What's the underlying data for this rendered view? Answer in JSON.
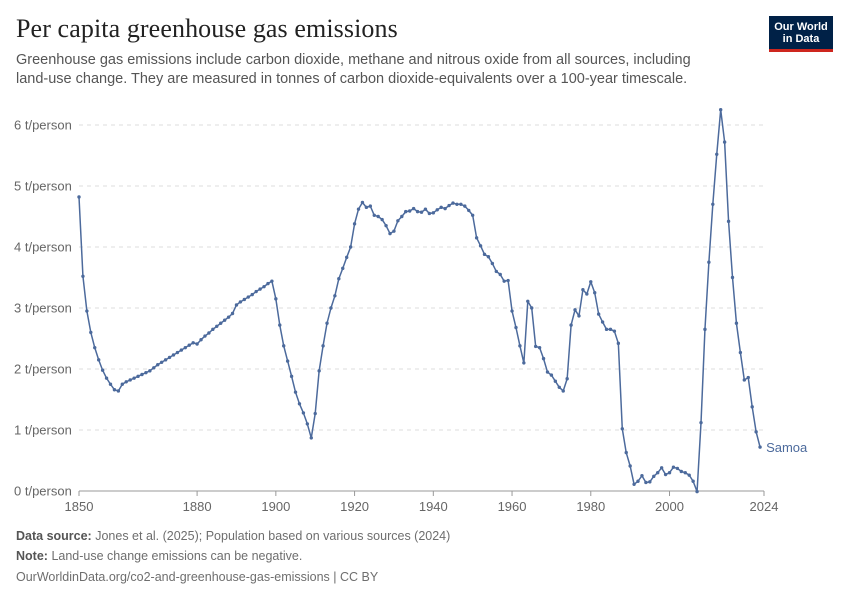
{
  "header": {
    "title": "Per capita greenhouse gas emissions",
    "subtitle": "Greenhouse gas emissions include carbon dioxide, methane and nitrous oxide from all sources, including land-use change. They are measured in tonnes of carbon dioxide-equivalents over a 100-year timescale."
  },
  "logo": {
    "line1": "Our World",
    "line2": "in Data",
    "bg_color": "#002147",
    "accent_color": "#ce261e"
  },
  "footer": {
    "source_label": "Data source:",
    "source_text": "Jones et al. (2025); Population based on various sources (2024)",
    "note_label": "Note:",
    "note_text": "Land-use change emissions can be negative.",
    "url_text": "OurWorldinData.org/co2-and-greenhouse-gas-emissions | CC BY"
  },
  "chart_data": {
    "type": "line",
    "title": "Per capita greenhouse gas emissions",
    "xlabel": "",
    "ylabel": "",
    "xlim": [
      1850,
      2024
    ],
    "ylim": [
      0,
      6
    ],
    "grid": true,
    "line_color": "#4c6a9c",
    "x_ticks": [
      {
        "value": 1850,
        "label": "1850"
      },
      {
        "value": 1880,
        "label": "1880"
      },
      {
        "value": 1900,
        "label": "1900"
      },
      {
        "value": 1920,
        "label": "1920"
      },
      {
        "value": 1940,
        "label": "1940"
      },
      {
        "value": 1960,
        "label": "1960"
      },
      {
        "value": 1980,
        "label": "1980"
      },
      {
        "value": 2000,
        "label": "2000"
      },
      {
        "value": 2024,
        "label": "2024"
      }
    ],
    "y_ticks": [
      {
        "value": 0,
        "label": "0 t/person"
      },
      {
        "value": 1,
        "label": "1 t/person"
      },
      {
        "value": 2,
        "label": "2 t/person"
      },
      {
        "value": 3,
        "label": "3 t/person"
      },
      {
        "value": 4,
        "label": "4 t/person"
      },
      {
        "value": 5,
        "label": "5 t/person"
      },
      {
        "value": 6,
        "label": "6 t/person"
      }
    ],
    "series": [
      {
        "name": "Samoa",
        "points": [
          [
            1850,
            4.82
          ],
          [
            1851,
            3.52
          ],
          [
            1852,
            2.95
          ],
          [
            1853,
            2.6
          ],
          [
            1854,
            2.35
          ],
          [
            1855,
            2.15
          ],
          [
            1856,
            1.98
          ],
          [
            1857,
            1.85
          ],
          [
            1858,
            1.75
          ],
          [
            1859,
            1.66
          ],
          [
            1860,
            1.64
          ],
          [
            1861,
            1.75
          ],
          [
            1862,
            1.79
          ],
          [
            1863,
            1.82
          ],
          [
            1864,
            1.85
          ],
          [
            1865,
            1.88
          ],
          [
            1866,
            1.91
          ],
          [
            1867,
            1.94
          ],
          [
            1868,
            1.97
          ],
          [
            1869,
            2.02
          ],
          [
            1870,
            2.07
          ],
          [
            1871,
            2.11
          ],
          [
            1872,
            2.15
          ],
          [
            1873,
            2.19
          ],
          [
            1874,
            2.23
          ],
          [
            1875,
            2.27
          ],
          [
            1876,
            2.31
          ],
          [
            1877,
            2.35
          ],
          [
            1878,
            2.39
          ],
          [
            1879,
            2.43
          ],
          [
            1880,
            2.41
          ],
          [
            1881,
            2.48
          ],
          [
            1882,
            2.54
          ],
          [
            1883,
            2.59
          ],
          [
            1884,
            2.65
          ],
          [
            1885,
            2.7
          ],
          [
            1886,
            2.75
          ],
          [
            1887,
            2.8
          ],
          [
            1888,
            2.85
          ],
          [
            1889,
            2.91
          ],
          [
            1890,
            3.05
          ],
          [
            1891,
            3.1
          ],
          [
            1892,
            3.14
          ],
          [
            1893,
            3.18
          ],
          [
            1894,
            3.22
          ],
          [
            1895,
            3.27
          ],
          [
            1896,
            3.31
          ],
          [
            1897,
            3.35
          ],
          [
            1898,
            3.4
          ],
          [
            1899,
            3.44
          ],
          [
            1900,
            3.15
          ],
          [
            1901,
            2.72
          ],
          [
            1902,
            2.38
          ],
          [
            1903,
            2.13
          ],
          [
            1904,
            1.88
          ],
          [
            1905,
            1.62
          ],
          [
            1906,
            1.43
          ],
          [
            1907,
            1.28
          ],
          [
            1908,
            1.1
          ],
          [
            1909,
            0.87
          ],
          [
            1910,
            1.27
          ],
          [
            1911,
            1.97
          ],
          [
            1912,
            2.38
          ],
          [
            1913,
            2.75
          ],
          [
            1914,
            3.0
          ],
          [
            1915,
            3.2
          ],
          [
            1916,
            3.48
          ],
          [
            1917,
            3.65
          ],
          [
            1918,
            3.83
          ],
          [
            1919,
            4.0
          ],
          [
            1920,
            4.38
          ],
          [
            1921,
            4.62
          ],
          [
            1922,
            4.73
          ],
          [
            1923,
            4.65
          ],
          [
            1924,
            4.67
          ],
          [
            1925,
            4.52
          ],
          [
            1926,
            4.5
          ],
          [
            1927,
            4.45
          ],
          [
            1928,
            4.35
          ],
          [
            1929,
            4.22
          ],
          [
            1930,
            4.26
          ],
          [
            1931,
            4.43
          ],
          [
            1932,
            4.5
          ],
          [
            1933,
            4.58
          ],
          [
            1934,
            4.59
          ],
          [
            1935,
            4.63
          ],
          [
            1936,
            4.58
          ],
          [
            1937,
            4.57
          ],
          [
            1938,
            4.62
          ],
          [
            1939,
            4.55
          ],
          [
            1940,
            4.56
          ],
          [
            1941,
            4.61
          ],
          [
            1942,
            4.65
          ],
          [
            1943,
            4.63
          ],
          [
            1944,
            4.68
          ],
          [
            1945,
            4.72
          ],
          [
            1946,
            4.7
          ],
          [
            1947,
            4.7
          ],
          [
            1948,
            4.67
          ],
          [
            1949,
            4.6
          ],
          [
            1950,
            4.52
          ],
          [
            1951,
            4.15
          ],
          [
            1952,
            4.02
          ],
          [
            1953,
            3.88
          ],
          [
            1954,
            3.84
          ],
          [
            1955,
            3.73
          ],
          [
            1956,
            3.6
          ],
          [
            1957,
            3.55
          ],
          [
            1958,
            3.44
          ],
          [
            1959,
            3.45
          ],
          [
            1960,
            2.95
          ],
          [
            1961,
            2.68
          ],
          [
            1962,
            2.38
          ],
          [
            1963,
            2.1
          ],
          [
            1964,
            3.11
          ],
          [
            1965,
            3.0
          ],
          [
            1966,
            2.37
          ],
          [
            1967,
            2.35
          ],
          [
            1968,
            2.17
          ],
          [
            1969,
            1.95
          ],
          [
            1970,
            1.9
          ],
          [
            1971,
            1.8
          ],
          [
            1972,
            1.7
          ],
          [
            1973,
            1.64
          ],
          [
            1974,
            1.84
          ],
          [
            1975,
            2.72
          ],
          [
            1976,
            2.97
          ],
          [
            1977,
            2.87
          ],
          [
            1978,
            3.3
          ],
          [
            1979,
            3.23
          ],
          [
            1980,
            3.43
          ],
          [
            1981,
            3.25
          ],
          [
            1982,
            2.9
          ],
          [
            1983,
            2.77
          ],
          [
            1984,
            2.65
          ],
          [
            1985,
            2.65
          ],
          [
            1986,
            2.62
          ],
          [
            1987,
            2.42
          ],
          [
            1988,
            1.02
          ],
          [
            1989,
            0.63
          ],
          [
            1990,
            0.41
          ],
          [
            1991,
            0.11
          ],
          [
            1992,
            0.16
          ],
          [
            1993,
            0.25
          ],
          [
            1994,
            0.14
          ],
          [
            1995,
            0.15
          ],
          [
            1996,
            0.24
          ],
          [
            1997,
            0.3
          ],
          [
            1998,
            0.38
          ],
          [
            1999,
            0.27
          ],
          [
            2000,
            0.3
          ],
          [
            2001,
            0.39
          ],
          [
            2002,
            0.37
          ],
          [
            2003,
            0.32
          ],
          [
            2004,
            0.3
          ],
          [
            2005,
            0.26
          ],
          [
            2006,
            0.16
          ],
          [
            2007,
            -0.01
          ],
          [
            2008,
            1.12
          ],
          [
            2009,
            2.65
          ],
          [
            2010,
            3.75
          ],
          [
            2011,
            4.7
          ],
          [
            2012,
            5.52
          ],
          [
            2013,
            6.25
          ],
          [
            2014,
            5.72
          ],
          [
            2015,
            4.42
          ],
          [
            2016,
            3.5
          ],
          [
            2017,
            2.75
          ],
          [
            2018,
            2.27
          ],
          [
            2019,
            1.82
          ],
          [
            2020,
            1.86
          ],
          [
            2021,
            1.38
          ],
          [
            2022,
            0.97
          ],
          [
            2023,
            0.72
          ]
        ]
      }
    ]
  }
}
